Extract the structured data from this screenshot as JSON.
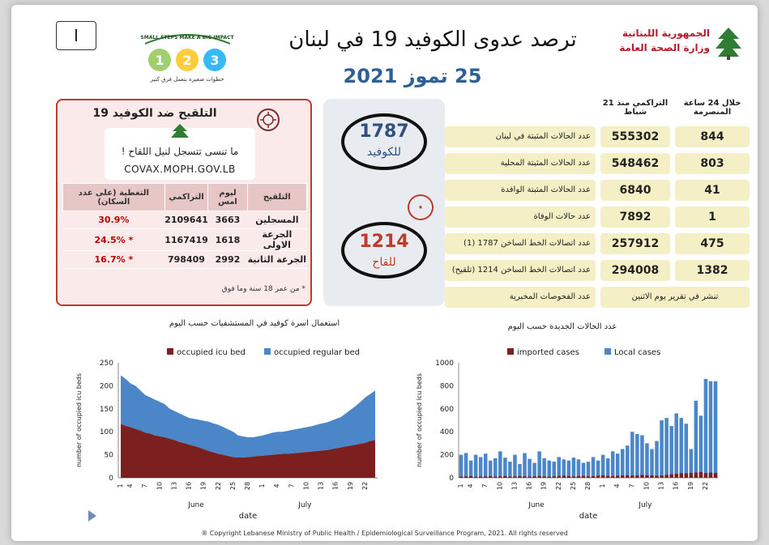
{
  "header": {
    "page_number": "I",
    "title": "ترصد عدوى الكوفيد 19 في لبنان",
    "date": "25 تموز 2021",
    "ministry_line1": "الجمهورية اللبنانية",
    "ministry_line2": "وزارة الصحة العامة",
    "logo_text": "SMALL STEPS MAKE A BIG IMPACT",
    "logo_text_ar": "خطوات صغيرة بتعمل فرق كبير"
  },
  "vaccine": {
    "title": "التلقيح ضد الكوفيد 19",
    "reminder": "ما تنسى تتسجل لنيل اللقاح !",
    "site": "COVAX.MOPH.GOV.LB",
    "columns": [
      "التلقيح",
      "ليوم امس",
      "التراكمي",
      "التغطية (على عدد السكان)"
    ],
    "rows": [
      {
        "name": "المسجلين",
        "yesterday": "3663",
        "cumulative": "2109641",
        "coverage": "30.9%"
      },
      {
        "name": "الجرعة الاولى",
        "yesterday": "1618",
        "cumulative": "1167419",
        "coverage": "* 24.5%"
      },
      {
        "name": "الجرعة الثانية",
        "yesterday": "2992",
        "cumulative": "798409",
        "coverage": "* 16.7%"
      }
    ],
    "note": "* من عمر 18 سنة وما فوق"
  },
  "hotlines": {
    "covid_number": "1787",
    "covid_label": "للكوفيد",
    "vaccine_number": "1214",
    "vaccine_label": "للقاح"
  },
  "stats": {
    "header_24h": "خلال 24 ساعة المنصرمة",
    "header_cum": "التراكمي منذ 21 شباط",
    "rows": [
      {
        "label": "عدد الحالات المثبتة في لبنان",
        "cumulative": "555302",
        "last24": "844"
      },
      {
        "label": "عدد الحالات المثبتة المحلية",
        "cumulative": "548462",
        "last24": "803"
      },
      {
        "label": "عدد الحالات المثبتة الوافدة",
        "cumulative": "6840",
        "last24": "41"
      },
      {
        "label": "عدد حالات الوفاة",
        "cumulative": "7892",
        "last24": "1"
      },
      {
        "label": "عدد اتصالات الخط الساخن 1787 (1)",
        "cumulative": "257912",
        "last24": "475"
      },
      {
        "label": "عدد اتصالات الخط الساخن 1214 (تلقيح)",
        "cumulative": "294008",
        "last24": "1382"
      }
    ],
    "tests_label": "عدد الفحوصات المخبرية",
    "tests_note": "تنشر في تقرير يوم الاثنين"
  },
  "colors": {
    "icu": "#7b1f1f",
    "regular": "#4a86c8",
    "imported": "#7b1f1f",
    "local": "#4a86c8"
  },
  "chart_data": [
    {
      "type": "area",
      "title": "استعمال اسرة كوفيد في المستشفيات حسب اليوم",
      "xlabel": "date",
      "ylabel": "number of occupied icu beds",
      "ylim": [
        0,
        250
      ],
      "yticks": [
        0,
        50,
        100,
        150,
        200,
        250
      ],
      "xticks": [
        "1",
        "4",
        "7",
        "10",
        "13",
        "16",
        "19",
        "22",
        "25",
        "28",
        "1",
        "4",
        "7",
        "10",
        "13",
        "16",
        "19",
        "22"
      ],
      "month_labels": [
        "June",
        "July"
      ],
      "legend": "top",
      "series": [
        {
          "name": "occupied icu bed",
          "values": [
            117,
            113,
            110,
            106,
            103,
            98,
            96,
            92,
            90,
            88,
            85,
            82,
            78,
            75,
            72,
            69,
            66,
            62,
            58,
            55,
            52,
            50,
            47,
            45,
            44,
            44,
            45,
            46,
            47,
            48,
            49,
            50,
            51,
            52,
            52,
            53,
            54,
            55,
            56,
            57,
            58,
            59,
            60,
            62,
            64,
            66,
            68,
            70,
            72,
            74,
            76,
            80,
            82
          ]
        },
        {
          "name": "occupied regular bed",
          "values": [
            223,
            215,
            205,
            200,
            190,
            180,
            175,
            170,
            165,
            160,
            150,
            145,
            140,
            135,
            130,
            128,
            126,
            124,
            122,
            118,
            115,
            110,
            105,
            100,
            92,
            90,
            88,
            88,
            90,
            92,
            95,
            98,
            100,
            100,
            102,
            104,
            106,
            108,
            110,
            112,
            115,
            118,
            120,
            124,
            128,
            132,
            140,
            148,
            156,
            165,
            175,
            182,
            190
          ]
        }
      ]
    },
    {
      "type": "bar",
      "title": "عدد الحالات الجديدة حسب اليوم",
      "xlabel": "date",
      "ylabel": "number of occupied icu beds",
      "ylim": [
        0,
        1000
      ],
      "yticks": [
        0,
        200,
        400,
        600,
        800,
        1000
      ],
      "xticks": [
        "1",
        "4",
        "7",
        "10",
        "13",
        "16",
        "19",
        "22",
        "25",
        "28",
        "1",
        "4",
        "7",
        "10",
        "13",
        "16",
        "19",
        "22"
      ],
      "month_labels": [
        "June",
        "July"
      ],
      "legend": "top",
      "series": [
        {
          "name": "imported cases",
          "values": [
            10,
            12,
            15,
            8,
            10,
            12,
            14,
            10,
            12,
            15,
            10,
            12,
            14,
            12,
            10,
            12,
            14,
            12,
            10,
            12,
            15,
            18,
            14,
            12,
            14,
            16,
            12,
            14,
            18,
            20,
            16,
            14,
            18,
            20,
            22,
            18,
            20,
            24,
            22,
            20,
            18,
            20,
            25,
            30,
            35,
            40,
            38,
            42,
            45,
            50,
            40,
            45,
            41
          ]
        },
        {
          "name": "Local cases",
          "values": [
            200,
            215,
            150,
            200,
            180,
            210,
            150,
            170,
            230,
            175,
            140,
            200,
            120,
            215,
            165,
            130,
            230,
            170,
            150,
            140,
            180,
            160,
            150,
            175,
            160,
            130,
            140,
            180,
            150,
            200,
            170,
            230,
            210,
            250,
            280,
            400,
            380,
            370,
            300,
            250,
            320,
            500,
            520,
            450,
            560,
            520,
            470,
            250,
            670,
            540,
            860,
            840,
            840
          ]
        }
      ]
    }
  ],
  "copyright": "® Copyright Lebanese Ministry of Public Health / Epidemiological Surveillance Program, 2021. All rights reserved"
}
